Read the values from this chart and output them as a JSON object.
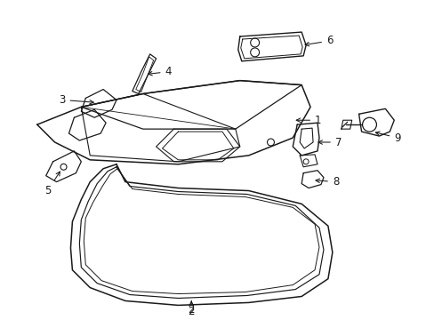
{
  "background_color": "#ffffff",
  "line_color": "#1a1a1a",
  "line_width": 1.0,
  "annotation_fontsize": 8.5,
  "fig_w": 4.89,
  "fig_h": 3.6,
  "dpi": 100
}
